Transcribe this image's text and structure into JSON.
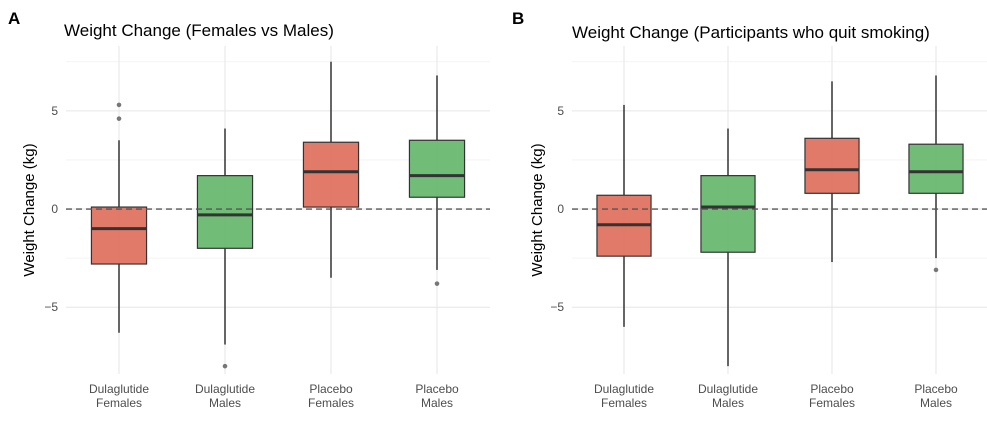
{
  "chart_data": [
    {
      "type": "boxplot",
      "panel": "A",
      "title": "Weight Change (Females vs Males)",
      "ylabel": "Weight Change (kg)",
      "xlabel": "",
      "ylim": [
        -8.4,
        8.3
      ],
      "yticks": [
        -5,
        0,
        5
      ],
      "grid": true,
      "reference_line": 0,
      "categories": [
        {
          "line1": "Dulaglutide",
          "line2": "Females"
        },
        {
          "line1": "Dulaglutide",
          "line2": "Males"
        },
        {
          "line1": "Placebo",
          "line2": "Females"
        },
        {
          "line1": "Placebo",
          "line2": "Males"
        }
      ],
      "boxes": [
        {
          "min": -6.3,
          "q1": -2.8,
          "median": -1.0,
          "q3": 0.1,
          "max": 3.5,
          "outliers": [
            5.3,
            4.6
          ],
          "color": "#df6f5c"
        },
        {
          "min": -6.9,
          "q1": -2.0,
          "median": -0.3,
          "q3": 1.7,
          "max": 4.1,
          "outliers": [
            -8.0
          ],
          "color": "#65b76c"
        },
        {
          "min": -3.5,
          "q1": 0.1,
          "median": 1.9,
          "q3": 3.4,
          "max": 7.5,
          "outliers": [],
          "color": "#df6f5c"
        },
        {
          "min": -3.1,
          "q1": 0.6,
          "median": 1.7,
          "q3": 3.5,
          "max": 6.8,
          "outliers": [
            -3.8
          ],
          "color": "#65b76c"
        }
      ]
    },
    {
      "type": "boxplot",
      "panel": "B",
      "title": "Weight Change (Participants who quit smoking)",
      "ylabel": "Weight Change (kg)",
      "xlabel": "",
      "ylim": [
        -8.4,
        8.3
      ],
      "yticks": [
        -5,
        0,
        5
      ],
      "grid": true,
      "reference_line": 0,
      "categories": [
        {
          "line1": "Dulaglutide",
          "line2": "Females"
        },
        {
          "line1": "Dulaglutide",
          "line2": "Males"
        },
        {
          "line1": "Placebo",
          "line2": "Females"
        },
        {
          "line1": "Placebo",
          "line2": "Males"
        }
      ],
      "boxes": [
        {
          "min": -6.0,
          "q1": -2.4,
          "median": -0.8,
          "q3": 0.7,
          "max": 5.3,
          "outliers": [],
          "color": "#df6f5c"
        },
        {
          "min": -8.0,
          "q1": -2.2,
          "median": 0.1,
          "q3": 1.7,
          "max": 4.1,
          "outliers": [],
          "color": "#65b76c"
        },
        {
          "min": -2.7,
          "q1": 0.8,
          "median": 2.0,
          "q3": 3.6,
          "max": 6.5,
          "outliers": [],
          "color": "#df6f5c"
        },
        {
          "min": -2.5,
          "q1": 0.8,
          "median": 1.9,
          "q3": 3.3,
          "max": 6.8,
          "outliers": [
            -3.1
          ],
          "color": "#65b76c"
        }
      ]
    }
  ]
}
